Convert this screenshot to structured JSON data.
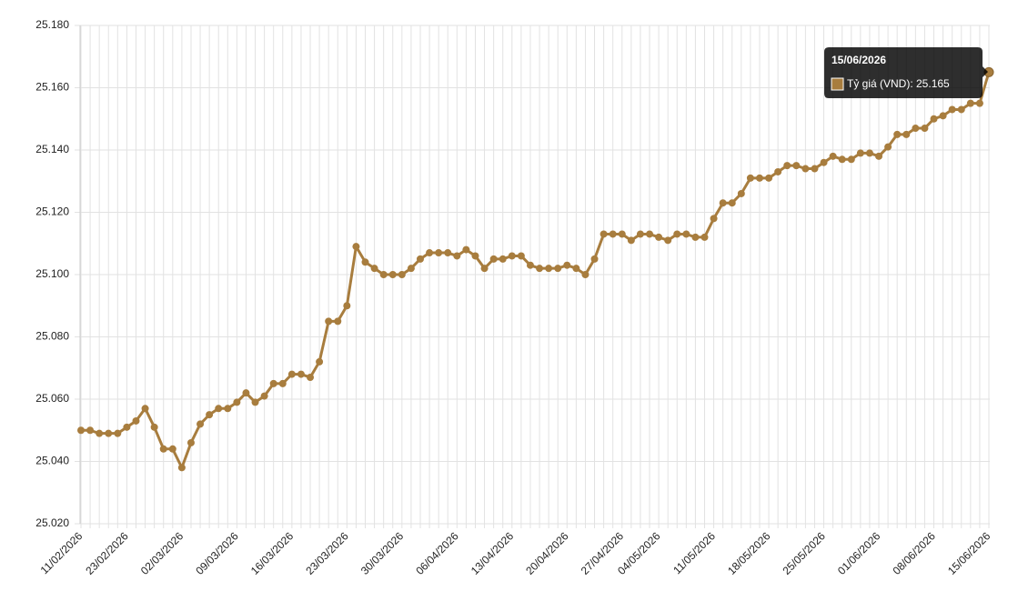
{
  "chart_data": {
    "type": "line",
    "categories": [
      "11/02/2026",
      null,
      null,
      null,
      null,
      "23/02/2026",
      null,
      null,
      null,
      null,
      null,
      "02/03/2026",
      null,
      null,
      null,
      null,
      null,
      "09/03/2026",
      null,
      null,
      null,
      null,
      null,
      "16/03/2026",
      null,
      null,
      null,
      null,
      null,
      "23/03/2026",
      null,
      null,
      null,
      null,
      null,
      "30/03/2026",
      null,
      null,
      null,
      null,
      null,
      "06/04/2026",
      null,
      null,
      null,
      null,
      null,
      "13/04/2026",
      null,
      null,
      null,
      null,
      null,
      "20/04/2026",
      null,
      null,
      null,
      null,
      null,
      "27/04/2026",
      null,
      null,
      null,
      "04/05/2026",
      null,
      null,
      null,
      null,
      null,
      "11/05/2026",
      null,
      null,
      null,
      null,
      null,
      "18/05/2026",
      null,
      null,
      null,
      null,
      null,
      "25/05/2026",
      null,
      null,
      null,
      null,
      null,
      "01/06/2026",
      null,
      null,
      null,
      null,
      null,
      "08/06/2026",
      null,
      null,
      null,
      null,
      null,
      "15/06/2026"
    ],
    "series": [
      {
        "name": "Tỷ giá (VND)",
        "color": "#a87d3e",
        "values": [
          25.05,
          25.05,
          25.049,
          25.049,
          25.049,
          25.051,
          25.053,
          25.057,
          25.051,
          25.044,
          25.044,
          25.038,
          25.046,
          25.052,
          25.055,
          25.057,
          25.057,
          25.059,
          25.062,
          25.059,
          25.061,
          25.065,
          25.065,
          25.068,
          25.068,
          25.067,
          25.072,
          25.085,
          25.085,
          25.09,
          25.109,
          25.104,
          25.102,
          25.1,
          25.1,
          25.1,
          25.102,
          25.105,
          25.107,
          25.107,
          25.107,
          25.106,
          25.108,
          25.106,
          25.102,
          25.105,
          25.105,
          25.106,
          25.106,
          25.103,
          25.102,
          25.102,
          25.102,
          25.103,
          25.102,
          25.1,
          25.105,
          25.113,
          25.113,
          25.113,
          25.111,
          25.113,
          25.113,
          25.112,
          25.111,
          25.113,
          25.113,
          25.112,
          25.112,
          25.118,
          25.123,
          25.123,
          25.126,
          25.131,
          25.131,
          25.131,
          25.133,
          25.135,
          25.135,
          25.134,
          25.134,
          25.136,
          25.138,
          25.137,
          25.137,
          25.139,
          25.139,
          25.138,
          25.141,
          25.145,
          25.145,
          25.147,
          25.147,
          25.15,
          25.151,
          25.153,
          25.153,
          25.155,
          25.155,
          25.165
        ]
      }
    ],
    "ylim": [
      25.02,
      25.18
    ],
    "yticks": [
      {
        "value": 25.02,
        "label": "25.020"
      },
      {
        "value": 25.04,
        "label": "25.040"
      },
      {
        "value": 25.06,
        "label": "25.060"
      },
      {
        "value": 25.08,
        "label": "25.080"
      },
      {
        "value": 25.1,
        "label": "25.100"
      },
      {
        "value": 25.12,
        "label": "25.120"
      },
      {
        "value": 25.14,
        "label": "25.140"
      },
      {
        "value": 25.16,
        "label": "25.160"
      },
      {
        "value": 25.18,
        "label": "25.180"
      }
    ],
    "grid": true,
    "tooltip_label": "Tỷ giá (VND): 25.165"
  }
}
